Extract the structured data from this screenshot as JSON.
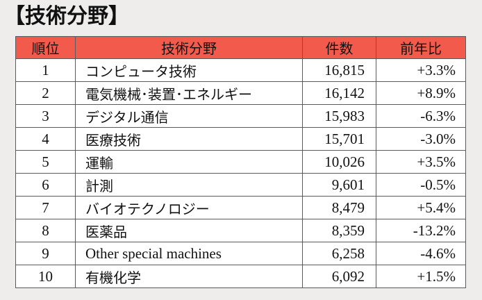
{
  "title": "【技術分野】",
  "colors": {
    "header_background": "#f25a4c",
    "page_background": "#eeedeb",
    "row_background": "#ffffff",
    "border": "#5a5a5a"
  },
  "table": {
    "headers": [
      "順位",
      "技術分野",
      "件数",
      "前年比"
    ],
    "rows": [
      {
        "rank": "1",
        "field": "コンピュータ技術",
        "count": "16,815",
        "change": "+3.3%"
      },
      {
        "rank": "2",
        "field": "電気機械･装置･エネルギー",
        "count": "16,142",
        "change": "+8.9%"
      },
      {
        "rank": "3",
        "field": "デジタル通信",
        "count": "15,983",
        "change": "-6.3%"
      },
      {
        "rank": "4",
        "field": "医療技術",
        "count": "15,701",
        "change": "-3.0%"
      },
      {
        "rank": "5",
        "field": "運輸",
        "count": "10,026",
        "change": "+3.5%"
      },
      {
        "rank": "6",
        "field": "計測",
        "count": "9,601",
        "change": "-0.5%"
      },
      {
        "rank": "7",
        "field": "バイオテクノロジー",
        "count": "8,479",
        "change": "+5.4%"
      },
      {
        "rank": "8",
        "field": "医薬品",
        "count": "8,359",
        "change": "-13.2%"
      },
      {
        "rank": "9",
        "field": "Other special machines",
        "count": "6,258",
        "change": "-4.6%"
      },
      {
        "rank": "10",
        "field": "有機化学",
        "count": "6,092",
        "change": "+1.5%"
      }
    ]
  }
}
